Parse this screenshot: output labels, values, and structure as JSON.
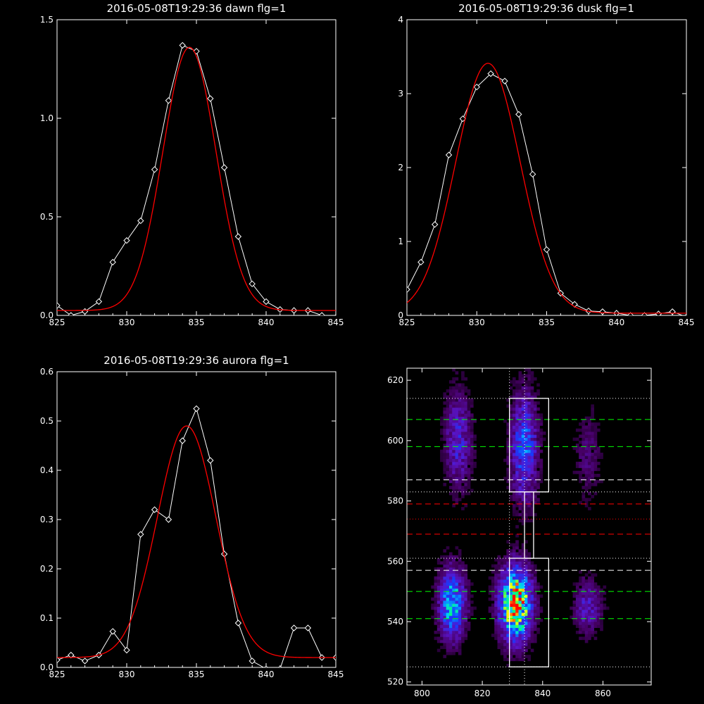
{
  "chart_data": [
    {
      "id": "dawn",
      "type": "line",
      "title": "2016-05-08T19:29:36 dawn flg=1",
      "xlim": [
        825,
        845
      ],
      "ylim": [
        0,
        1.5
      ],
      "xticks": [
        "825",
        "830",
        "835",
        "840",
        "845"
      ],
      "yticks": [
        "0.0",
        "0.5",
        "1.0",
        "1.5"
      ],
      "grid": false,
      "series": [
        {
          "kind": "observed",
          "color": "#ffffff",
          "marker": "diamond",
          "x": [
            825,
            826,
            827,
            828,
            829,
            830,
            831,
            832,
            833,
            834,
            835,
            836,
            837,
            838,
            839,
            840,
            841,
            842,
            843,
            844,
            845
          ],
          "y": [
            0.05,
            0.0,
            0.02,
            0.07,
            0.27,
            0.38,
            0.48,
            0.74,
            1.09,
            1.37,
            1.34,
            1.1,
            0.75,
            0.4,
            0.16,
            0.07,
            0.03,
            0.025,
            0.025,
            0.0,
            -0.01
          ]
        },
        {
          "kind": "fit",
          "color": "#ff0000",
          "gaussian": {
            "amplitude": 1.335,
            "center": 834.5,
            "sigma": 1.9,
            "baseline": 0.025
          }
        }
      ]
    },
    {
      "id": "dusk",
      "type": "line",
      "title": "2016-05-08T19:29:36 dusk flg=1",
      "xlim": [
        825,
        845
      ],
      "ylim": [
        0,
        4
      ],
      "xticks": [
        "825",
        "830",
        "835",
        "840",
        "845"
      ],
      "yticks": [
        "0",
        "1",
        "2",
        "3",
        "4"
      ],
      "grid": false,
      "series": [
        {
          "kind": "observed",
          "color": "#ffffff",
          "marker": "diamond",
          "x": [
            825,
            826,
            827,
            828,
            829,
            830,
            831,
            832,
            833,
            834,
            835,
            836,
            837,
            838,
            839,
            840,
            841,
            842,
            843,
            844,
            845
          ],
          "y": [
            0.35,
            0.72,
            1.23,
            2.17,
            2.66,
            3.09,
            3.27,
            3.17,
            2.72,
            1.91,
            0.89,
            0.3,
            0.15,
            0.06,
            0.05,
            0.03,
            0.0,
            0.0,
            0.02,
            0.05,
            -0.02
          ]
        },
        {
          "kind": "fit",
          "color": "#ff0000",
          "gaussian": {
            "amplitude": 3.38,
            "center": 830.8,
            "sigma": 2.3,
            "baseline": 0.03
          }
        }
      ]
    },
    {
      "id": "aurora",
      "type": "line",
      "title": "2016-05-08T19:29:36 aurora flg=1",
      "xlim": [
        825,
        845
      ],
      "ylim": [
        0,
        0.6
      ],
      "xticks": [
        "825",
        "830",
        "835",
        "840",
        "845"
      ],
      "yticks": [
        "0.0",
        "0.1",
        "0.2",
        "0.3",
        "0.4",
        "0.5",
        "0.6"
      ],
      "grid": false,
      "series": [
        {
          "kind": "observed",
          "color": "#ffffff",
          "marker": "diamond",
          "x": [
            825,
            826,
            827,
            828,
            829,
            830,
            831,
            832,
            833,
            834,
            835,
            836,
            837,
            838,
            839,
            840,
            841,
            842,
            843,
            844,
            845
          ],
          "y": [
            0.015,
            0.025,
            0.013,
            0.025,
            0.073,
            0.035,
            0.27,
            0.32,
            0.3,
            0.46,
            0.525,
            0.42,
            0.23,
            0.09,
            0.013,
            -0.003,
            -0.003,
            0.08,
            0.08,
            0.02,
            0.02
          ]
        },
        {
          "kind": "fit",
          "color": "#ff0000",
          "gaussian": {
            "amplitude": 0.47,
            "center": 834.3,
            "sigma": 2.1,
            "baseline": 0.02
          }
        }
      ]
    },
    {
      "id": "image",
      "type": "heatmap",
      "title": "",
      "xlim": [
        795,
        876
      ],
      "ylim": [
        519,
        624
      ],
      "xticks": [
        800,
        820,
        840,
        860
      ],
      "yticks": [
        520,
        540,
        560,
        580,
        600,
        620
      ],
      "colormap": "rainbow",
      "blobs": [
        {
          "x": 810,
          "y": 546,
          "sx": 3.0,
          "sy": 8,
          "amp": 0.55
        },
        {
          "x": 812,
          "y": 600,
          "sx": 3.0,
          "sy": 11,
          "amp": 0.28
        },
        {
          "x": 831,
          "y": 546,
          "sx": 3.5,
          "sy": 8,
          "amp": 0.95
        },
        {
          "x": 834,
          "y": 598,
          "sx": 3.0,
          "sy": 12,
          "amp": 0.42
        },
        {
          "x": 855,
          "y": 545,
          "sx": 3.0,
          "sy": 6,
          "amp": 0.25
        },
        {
          "x": 855,
          "y": 595,
          "sx": 3.0,
          "sy": 10,
          "amp": 0.12
        }
      ],
      "hlines": [
        {
          "y": 614,
          "color": "#ffffff",
          "style": "dotted"
        },
        {
          "y": 607,
          "color": "#00ff00",
          "style": "dashed"
        },
        {
          "y": 598,
          "color": "#00ff00",
          "style": "dashed"
        },
        {
          "y": 587,
          "color": "#ffffff",
          "style": "dashed"
        },
        {
          "y": 583,
          "color": "#ffffff",
          "style": "dotted"
        },
        {
          "y": 579,
          "color": "#ff0000",
          "style": "dashed"
        },
        {
          "y": 574,
          "color": "#ff0000",
          "style": "dotted"
        },
        {
          "y": 569,
          "color": "#ff0000",
          "style": "dashed"
        },
        {
          "y": 561,
          "color": "#ffffff",
          "style": "dotted"
        },
        {
          "y": 557,
          "color": "#ffffff",
          "style": "dashed"
        },
        {
          "y": 550,
          "color": "#00ff00",
          "style": "dashed"
        },
        {
          "y": 541,
          "color": "#00ff00",
          "style": "dashed"
        },
        {
          "y": 525,
          "color": "#ffffff",
          "style": "dotted"
        }
      ],
      "vlines": [
        {
          "x": 829,
          "color": "#ffffff",
          "style": "dotted"
        },
        {
          "x": 834,
          "color": "#ffffff",
          "style": "dotted"
        }
      ],
      "boxes": [
        {
          "x0": 829,
          "x1": 842,
          "y0": 583,
          "y1": 614,
          "color": "#ffffff"
        },
        {
          "x0": 829,
          "x1": 842,
          "y0": 525,
          "y1": 561,
          "color": "#ffffff"
        },
        {
          "x0": 834,
          "x1": 837,
          "y0": 561,
          "y1": 583,
          "color": "#ffffff"
        }
      ]
    }
  ]
}
